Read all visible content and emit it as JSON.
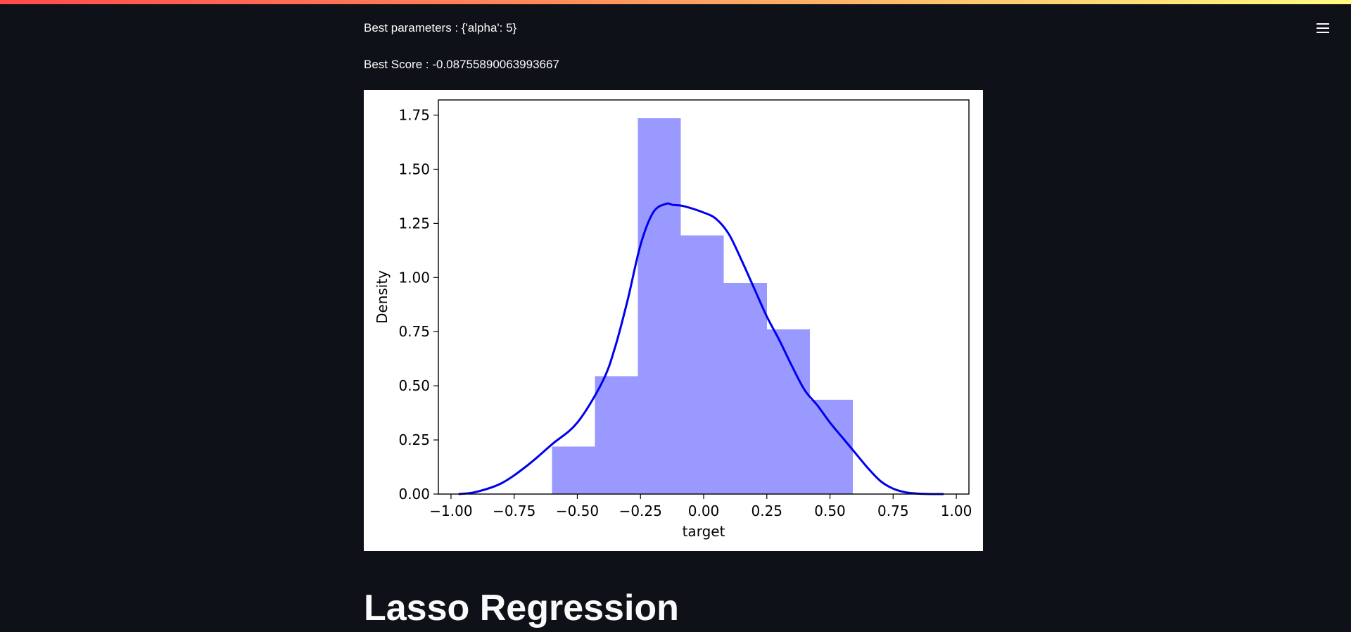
{
  "header": {
    "decoration_colors": [
      "#ff4b4b",
      "#ff8a5b",
      "#fffd80"
    ],
    "menu_icon": "hamburger-menu-icon"
  },
  "results": {
    "best_params_text": "Best parameters : {'alpha': 5}",
    "best_score_text": "Best Score : -0.08755890063993667"
  },
  "chart_data": {
    "type": "bar",
    "title": "",
    "xlabel": "target",
    "ylabel": "Density",
    "xlim": [
      -1.05,
      1.05
    ],
    "ylim": [
      0,
      1.82
    ],
    "grid": false,
    "xticks": [
      -1.0,
      -0.75,
      -0.5,
      -0.25,
      0.0,
      0.25,
      0.5,
      0.75,
      1.0
    ],
    "xtick_labels": [
      "−1.00",
      "−0.75",
      "−0.50",
      "−0.25",
      "0.00",
      "0.25",
      "0.50",
      "0.75",
      "1.00"
    ],
    "yticks": [
      0,
      0.25,
      0.5,
      0.75,
      1.0,
      1.25,
      1.5,
      1.75
    ],
    "ytick_labels": [
      "0.00",
      "0.25",
      "0.50",
      "0.75",
      "1.00",
      "1.25",
      "1.50",
      "1.75"
    ],
    "histogram": {
      "color": "#9999ff",
      "bins": [
        {
          "x0": -0.6,
          "x1": -0.43,
          "value": 0.22
        },
        {
          "x0": -0.43,
          "x1": -0.26,
          "value": 0.545
        },
        {
          "x0": -0.26,
          "x1": -0.09,
          "value": 1.735
        },
        {
          "x0": -0.09,
          "x1": 0.08,
          "value": 1.195
        },
        {
          "x0": 0.08,
          "x1": 0.25,
          "value": 0.975
        },
        {
          "x0": 0.25,
          "x1": 0.42,
          "value": 0.76
        },
        {
          "x0": 0.42,
          "x1": 0.59,
          "value": 0.435
        }
      ]
    },
    "kde": {
      "color": "#0000ee",
      "x": [
        -0.97,
        -0.9,
        -0.8,
        -0.7,
        -0.6,
        -0.5,
        -0.4,
        -0.35,
        -0.3,
        -0.25,
        -0.2,
        -0.15,
        -0.12,
        -0.08,
        0.0,
        0.05,
        0.1,
        0.15,
        0.2,
        0.25,
        0.3,
        0.35,
        0.4,
        0.45,
        0.5,
        0.55,
        0.6,
        0.65,
        0.7,
        0.75,
        0.8,
        0.85,
        0.9,
        0.95
      ],
      "y": [
        0.0,
        0.01,
        0.05,
        0.13,
        0.23,
        0.33,
        0.52,
        0.68,
        0.9,
        1.15,
        1.3,
        1.34,
        1.335,
        1.33,
        1.3,
        1.27,
        1.2,
        1.08,
        0.95,
        0.82,
        0.71,
        0.59,
        0.48,
        0.41,
        0.33,
        0.26,
        0.19,
        0.12,
        0.06,
        0.025,
        0.008,
        0.002,
        0.0,
        0.0
      ]
    }
  },
  "section": {
    "heading": "Lasso Regression"
  }
}
